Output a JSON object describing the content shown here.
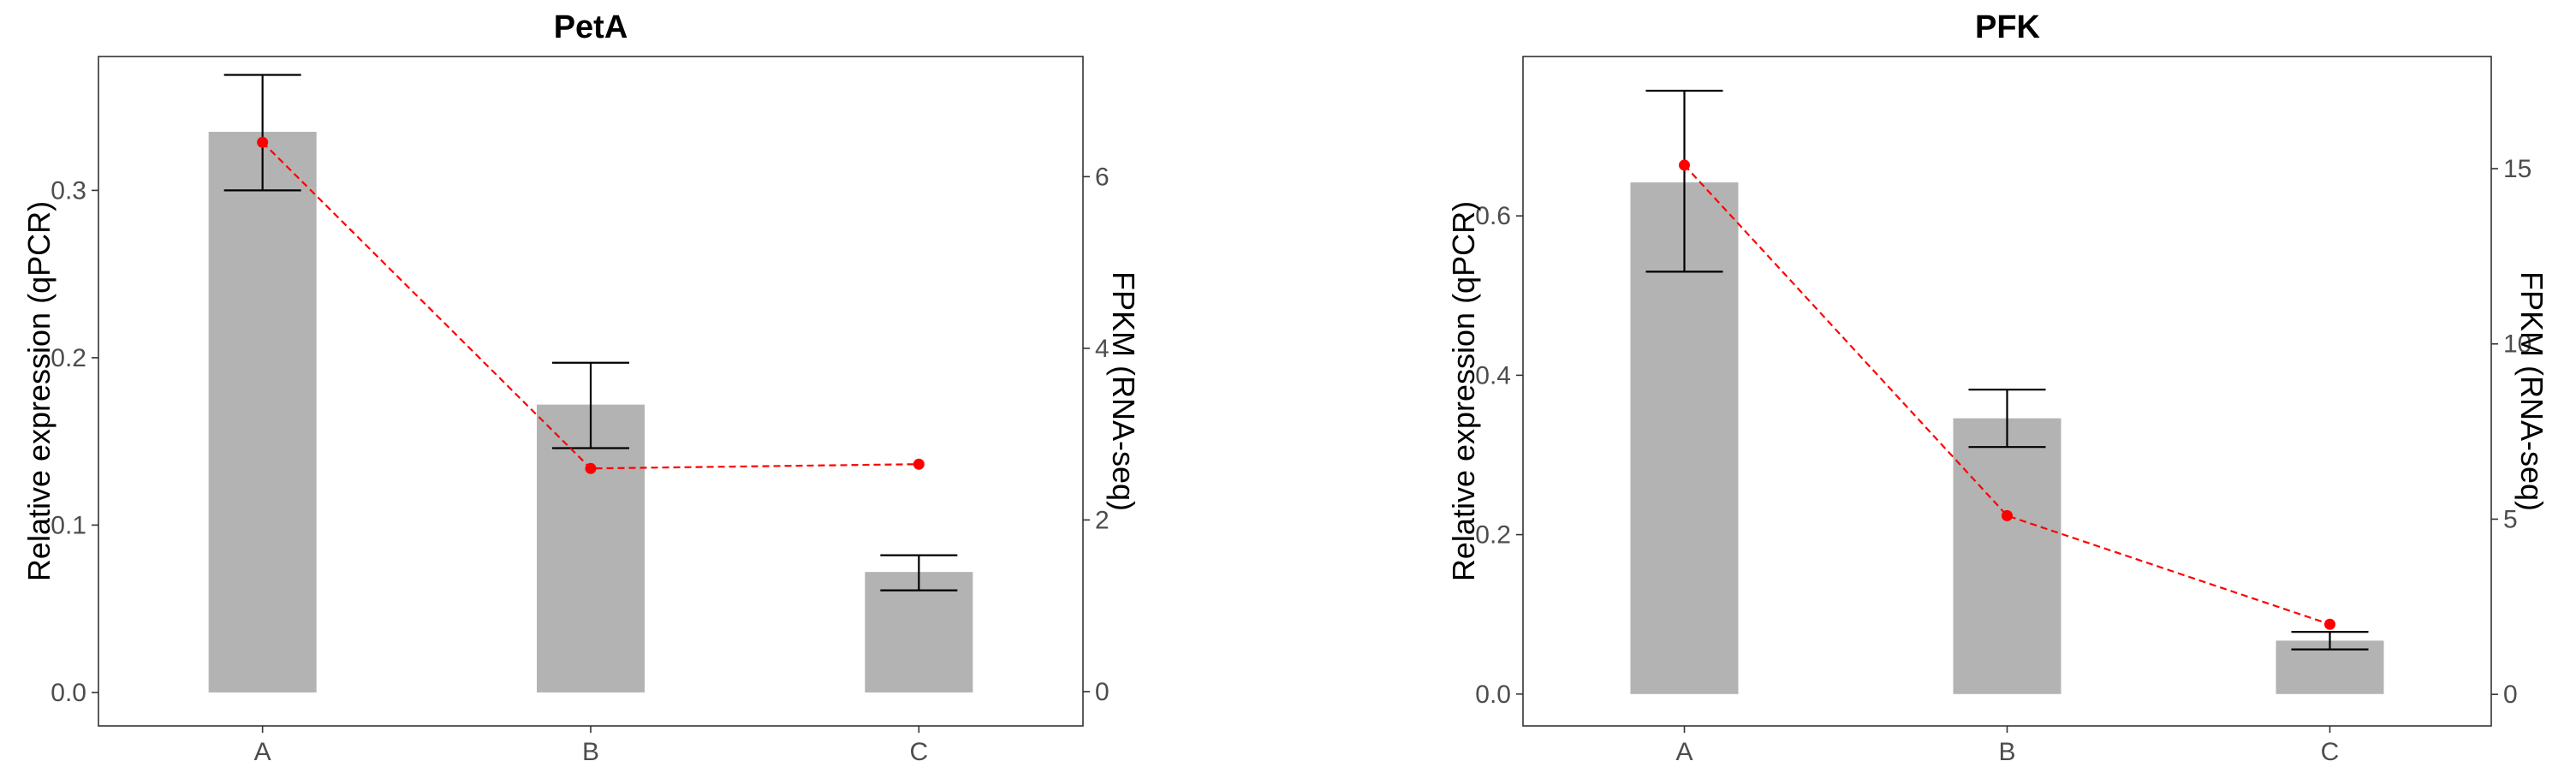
{
  "chart_data": [
    {
      "type": "bar",
      "title": "PetA",
      "categories": [
        "A",
        "B",
        "C"
      ],
      "ylabel": "Relative expression (qPCR)",
      "y2label": "FPKM (RNA-seq)",
      "ylim": [
        -0.02,
        0.38
      ],
      "yticks": [
        0.0,
        0.1,
        0.2,
        0.3
      ],
      "ytick_labels": [
        "0.0",
        "0.1",
        "0.2",
        "0.3"
      ],
      "y2lim": [
        -0.4,
        7.4
      ],
      "y2ticks": [
        0,
        2,
        4,
        6
      ],
      "y2tick_labels": [
        "0",
        "2",
        "4",
        "6"
      ],
      "series": [
        {
          "name": "",
          "kind": "bar",
          "axis": "left",
          "values": [
            0.335,
            0.172,
            0.072
          ],
          "err_low": [
            0.3,
            0.146,
            0.061
          ],
          "err_high": [
            0.369,
            0.197,
            0.082
          ],
          "color": "#b3b3b3"
        },
        {
          "name": "",
          "kind": "line",
          "axis": "right",
          "values": [
            6.4,
            2.6,
            2.65
          ],
          "color": "#ff0000",
          "style": "dashed"
        }
      ],
      "grid": false
    },
    {
      "type": "bar",
      "title": "PFK",
      "categories": [
        "A",
        "B",
        "C"
      ],
      "ylabel": "Relative expression (qPCR)",
      "y2label": "FPKM (RNA-seq)",
      "ylim": [
        -0.04,
        0.8
      ],
      "yticks": [
        0.0,
        0.2,
        0.4,
        0.6
      ],
      "ytick_labels": [
        "0.0",
        "0.2",
        "0.4",
        "0.6"
      ],
      "y2lim": [
        -0.9,
        18.2
      ],
      "y2ticks": [
        0,
        5,
        10,
        15
      ],
      "y2tick_labels": [
        "0",
        "5",
        "10",
        "15"
      ],
      "series": [
        {
          "name": "",
          "kind": "bar",
          "axis": "left",
          "values": [
            0.642,
            0.346,
            0.067
          ],
          "err_low": [
            0.53,
            0.31,
            0.056
          ],
          "err_high": [
            0.757,
            0.382,
            0.078
          ],
          "color": "#b3b3b3"
        },
        {
          "name": "",
          "kind": "line",
          "axis": "right",
          "values": [
            15.1,
            5.1,
            2.0
          ],
          "color": "#ff0000",
          "style": "dashed"
        }
      ],
      "grid": false
    }
  ]
}
